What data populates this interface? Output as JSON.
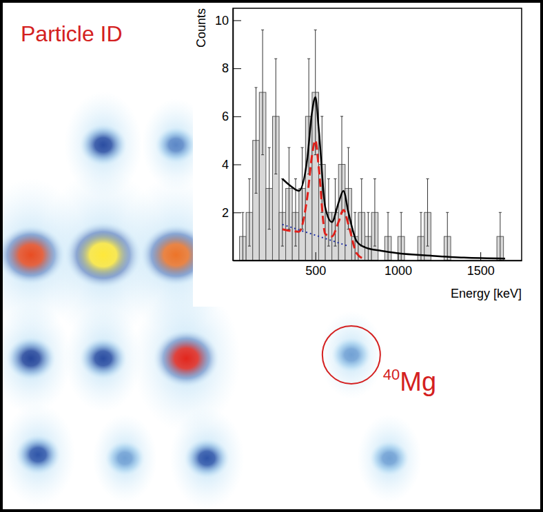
{
  "chart_data": [
    {
      "type": "density",
      "title": "Particle ID",
      "x": [
        5.7,
        5.7,
        7.0,
        19.0,
        19.0,
        19.0,
        23.0,
        32.4,
        32.4,
        34.3,
        38.1,
        64.7,
        71.7
      ],
      "values": [
        50.2,
        30.0,
        11.2,
        71.7,
        50.2,
        30.0,
        10.5,
        71.7,
        50.2,
        30.0,
        10.5,
        30.7,
        10.5
      ],
      "intensity": [
        0.8,
        0.35,
        0.25,
        0.3,
        1.0,
        0.3,
        0.1,
        0.15,
        0.85,
        0.75,
        0.25,
        0.1,
        0.1
      ],
      "zlim": [
        0,
        1
      ],
      "xlim": [
        0,
        100
      ],
      "ylim": [
        0,
        100
      ],
      "tick_labels": false,
      "annotations": [
        {
          "text": "40Mg",
          "x": 64.7,
          "y": 30.7
        }
      ]
    },
    {
      "type": "histogram",
      "xlabel": "Energy [keV]",
      "ylabel": "Counts",
      "bins": [
        0,
        40,
        80,
        120,
        160,
        200,
        240,
        280,
        320,
        360,
        400,
        440,
        480,
        520,
        560,
        600,
        640,
        680,
        720,
        760,
        800,
        840,
        880,
        920,
        960,
        1000,
        1040,
        1080,
        1120,
        1160,
        1200,
        1240,
        1280,
        1320,
        1360,
        1400,
        1440,
        1480,
        1520,
        1560,
        1600,
        1640,
        1680
      ],
      "counts": [
        0,
        1,
        2,
        5,
        7,
        3,
        6,
        2,
        3,
        2,
        3,
        6,
        7,
        4,
        2,
        2,
        4,
        3,
        1,
        2,
        1,
        2,
        0,
        1,
        0,
        1,
        0,
        0,
        1,
        2,
        0,
        0,
        1,
        0,
        0,
        0,
        0,
        0,
        0,
        0,
        1,
        0
      ],
      "errors": [
        0,
        1,
        1.4,
        2.2,
        2.6,
        1.7,
        2.4,
        1.4,
        1.7,
        1.4,
        1.7,
        2.4,
        2.6,
        2,
        1.4,
        1.4,
        2,
        1.7,
        1,
        1.4,
        1,
        1.4,
        0,
        1,
        0,
        1,
        0,
        0,
        1,
        1.4,
        0,
        0,
        1,
        0,
        0,
        0,
        0,
        0,
        0,
        0,
        1,
        0
      ],
      "xlim": [
        0,
        1750
      ],
      "ylim": [
        0,
        10.5
      ],
      "xticks": [
        500,
        1000,
        1500
      ],
      "yticks": [
        2,
        4,
        6,
        8,
        10
      ],
      "series": [
        {
          "type": "line",
          "color": "#000000",
          "line_style": "solid",
          "x": [
            300,
            350,
            400,
            450,
            480,
            500,
            520,
            560,
            600,
            640,
            670,
            700,
            750,
            800,
            900,
            1000,
            1200,
            1400,
            1650
          ],
          "values": [
            3.4,
            3.1,
            2.9,
            4.2,
            6.2,
            6.8,
            5.5,
            2.2,
            1.6,
            2.4,
            2.9,
            2.0,
            0.8,
            0.55,
            0.4,
            0.3,
            0.2,
            0.12,
            0.08
          ]
        },
        {
          "type": "line",
          "color": "#e0201a",
          "line_style": "dashed",
          "x": [
            300,
            400,
            450,
            480,
            500,
            520,
            560,
            600,
            640,
            670,
            700,
            750,
            800
          ],
          "values": [
            1.3,
            1.2,
            2.6,
            4.4,
            5.0,
            3.9,
            1.1,
            1.0,
            1.6,
            2.1,
            1.5,
            0.3,
            0.05
          ]
        },
        {
          "type": "line",
          "color": "#1f2fa8",
          "line_style": "dotted",
          "x": [
            300,
            700
          ],
          "values": [
            1.5,
            0.6
          ]
        }
      ]
    }
  ]
}
